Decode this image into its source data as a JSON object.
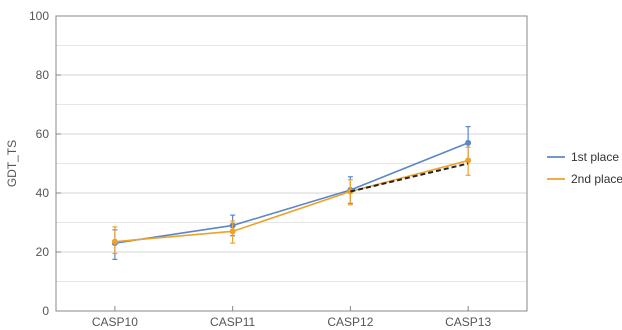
{
  "chart_data": {
    "type": "line",
    "title": "",
    "xlabel": "",
    "ylabel": "GDT_TS",
    "categories": [
      "CASP10",
      "CASP11",
      "CASP12",
      "CASP13"
    ],
    "ylim": [
      0,
      100
    ],
    "yticks": [
      0,
      20,
      40,
      60,
      80,
      100
    ],
    "grid": true,
    "legend_position": "right",
    "series": [
      {
        "name": "1st place",
        "color": "#5b87c8",
        "values": [
          23,
          29,
          41,
          57
        ],
        "error_low": [
          17.5,
          25.5,
          36.5,
          51.5
        ],
        "error_high": [
          27.5,
          32.5,
          45.5,
          62.5
        ]
      },
      {
        "name": "2nd place",
        "color": "#f0a12a",
        "values": [
          23.5,
          27,
          40.5,
          51
        ],
        "error_low": [
          19.5,
          23,
          36,
          46
        ],
        "error_high": [
          28.5,
          30.5,
          44.5,
          55.5
        ]
      }
    ],
    "trend_line": {
      "color": "#222222",
      "style": "dashed",
      "from": {
        "category": "CASP12",
        "value": 40.5
      },
      "to": {
        "category": "CASP13",
        "value": 50
      }
    }
  }
}
